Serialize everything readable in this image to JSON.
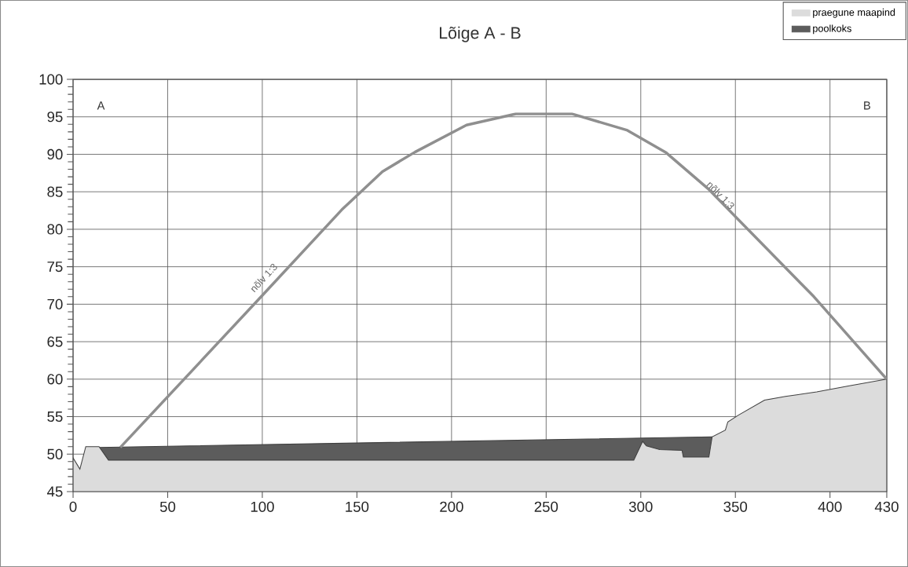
{
  "chart_data": {
    "type": "area",
    "title": "Lõige A - B",
    "xlim": [
      0,
      430
    ],
    "xticks": [
      0,
      50,
      100,
      150,
      200,
      250,
      300,
      350,
      400,
      430
    ],
    "ylim": [
      45,
      100
    ],
    "yticks": [
      45,
      {
        "value": 46,
        "label": null
      },
      {
        "value": 47,
        "label": null
      },
      {
        "value": 48,
        "label": null
      },
      {
        "value": 49,
        "label": null
      },
      50,
      {
        "value": 51,
        "label": null
      },
      {
        "value": 52,
        "label": null
      },
      {
        "value": 53,
        "label": null
      },
      {
        "value": 54,
        "label": null
      },
      55,
      {
        "value": 56,
        "label": null
      },
      {
        "value": 57,
        "label": null
      },
      {
        "value": 58,
        "label": null
      },
      {
        "value": 59,
        "label": null
      },
      60,
      {
        "value": 61,
        "label": null
      },
      {
        "value": 62,
        "label": null
      },
      {
        "value": 63,
        "label": null
      },
      {
        "value": 64,
        "label": null
      },
      65,
      {
        "value": 66,
        "label": null
      },
      {
        "value": 67,
        "label": null
      },
      {
        "value": 68,
        "label": null
      },
      {
        "value": 69,
        "label": null
      },
      70,
      {
        "value": 71,
        "label": null
      },
      {
        "value": 72,
        "label": null
      },
      {
        "value": 73,
        "label": null
      },
      {
        "value": 74,
        "label": null
      },
      75,
      {
        "value": 76,
        "label": null
      },
      {
        "value": 77,
        "label": null
      },
      {
        "value": 78,
        "label": null
      },
      {
        "value": 79,
        "label": null
      },
      80,
      {
        "value": 81,
        "label": null
      },
      {
        "value": 82,
        "label": null
      },
      {
        "value": 83,
        "label": null
      },
      {
        "value": 84,
        "label": null
      },
      85,
      {
        "value": 86,
        "label": null
      },
      {
        "value": 87,
        "label": null
      },
      {
        "value": 88,
        "label": null
      },
      {
        "value": 89,
        "label": null
      },
      90,
      {
        "value": 91,
        "label": null
      },
      {
        "value": 92,
        "label": null
      },
      {
        "value": 93,
        "label": null
      },
      {
        "value": 94,
        "label": null
      },
      95,
      {
        "value": 96,
        "label": null
      },
      {
        "value": 97,
        "label": null
      },
      {
        "value": 98,
        "label": null
      },
      {
        "value": 99,
        "label": null
      },
      100
    ],
    "grid": true,
    "legend": "top right",
    "series": [
      {
        "name": "praegune maapind",
        "color": "#dcdcdc",
        "x": [
          0,
          3.6,
          6.7,
          13.7,
          18.7,
          296.3,
          301,
          303,
          310,
          321.8,
          322.5,
          336,
          337.7,
          344.7,
          346,
          351.6,
          365.4,
          376.5,
          393,
          409.7,
          430
        ],
        "values": [
          49.5,
          48,
          51,
          51,
          49.2,
          49.2,
          51.7,
          51.1,
          50.6,
          50.5,
          49.6,
          49.6,
          52.3,
          53.2,
          54.3,
          55.2,
          57.2,
          57.7,
          58.3,
          59.1,
          60
        ]
      },
      {
        "name": "poolkoks",
        "color": "#5c5c5c",
        "x": [
          13.7,
          337.7
        ],
        "values": [
          50.9,
          52.3
        ]
      },
      {
        "type": "line",
        "color": "#8f8f8f",
        "x": [
          25,
          99,
          142,
          163.5,
          180.7,
          207.9,
          234,
          263.5,
          292.9,
          313.5,
          335.6,
          391.5,
          430
        ],
        "values": [
          50.9,
          70.9,
          82.6,
          87.7,
          90.3,
          93.9,
          95.4,
          95.4,
          93.2,
          90.2,
          85.4,
          71,
          60
        ]
      }
    ],
    "annotations": [
      "A",
      "B",
      {
        "text": "nõlv 1:3",
        "x": 103,
        "y": 73
      },
      {
        "text": "nõlv 1:3",
        "x": 340,
        "y": 84
      }
    ]
  }
}
